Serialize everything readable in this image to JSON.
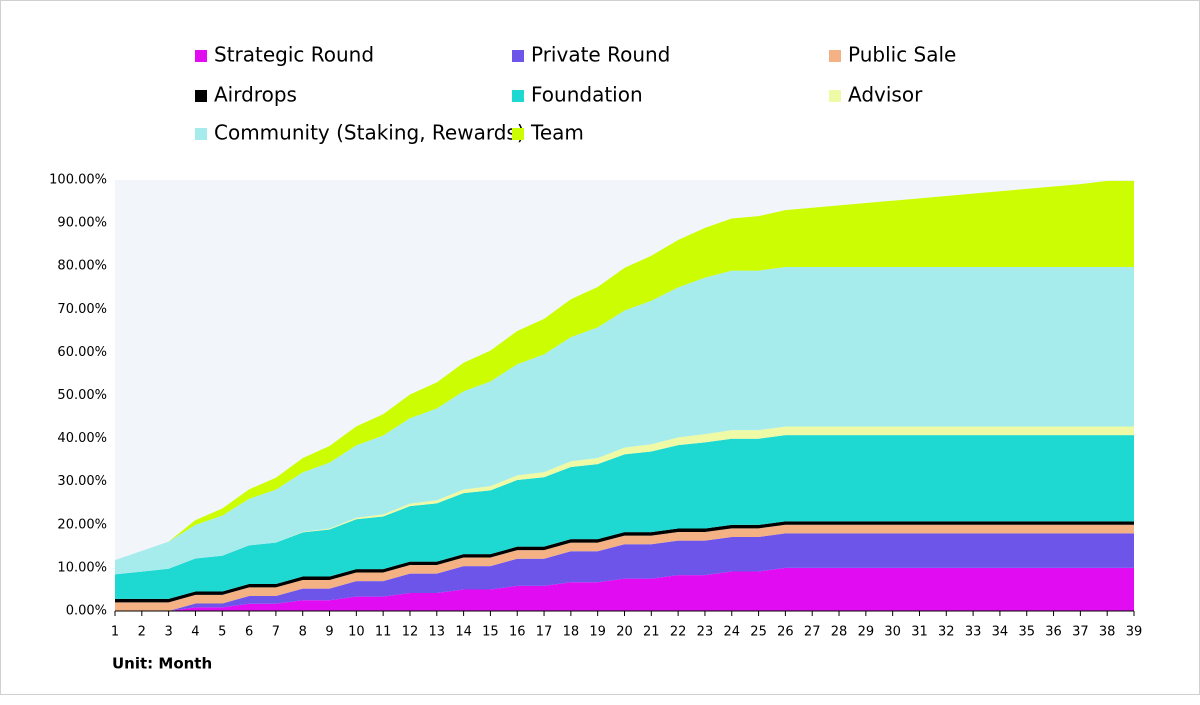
{
  "chart_data": {
    "type": "stacked-area",
    "x_label": "Unit: Month",
    "x": [
      1,
      2,
      3,
      4,
      5,
      6,
      7,
      8,
      9,
      10,
      11,
      12,
      13,
      14,
      15,
      16,
      17,
      18,
      19,
      20,
      21,
      22,
      23,
      24,
      25,
      26,
      27,
      28,
      29,
      30,
      31,
      32,
      33,
      34,
      35,
      36,
      37,
      38,
      39
    ],
    "xlim": [
      1,
      39
    ],
    "xticks": [
      1,
      2,
      3,
      4,
      5,
      6,
      7,
      8,
      9,
      10,
      11,
      12,
      13,
      14,
      15,
      16,
      17,
      18,
      19,
      20,
      21,
      22,
      23,
      24,
      25,
      26,
      27,
      28,
      29,
      30,
      31,
      32,
      33,
      34,
      35,
      36,
      37,
      38,
      39
    ],
    "ylim": [
      0,
      100
    ],
    "yticks": [
      {
        "value": 0,
        "label": "0.00%"
      },
      {
        "value": 10,
        "label": "10.00%"
      },
      {
        "value": 20,
        "label": "20.00%"
      },
      {
        "value": 30,
        "label": "30.00%"
      },
      {
        "value": 40,
        "label": "40.00%"
      },
      {
        "value": 50,
        "label": "50.00%"
      },
      {
        "value": 60,
        "label": "60.00%"
      },
      {
        "value": 70,
        "label": "70.00%"
      },
      {
        "value": 80,
        "label": "80.00%"
      },
      {
        "value": 90,
        "label": "90.00%"
      },
      {
        "value": 100,
        "label": "100.00%"
      }
    ],
    "grid": false,
    "legend_position": "top",
    "series": [
      {
        "name": "Strategic Round",
        "color": "#e20cf2",
        "values": [
          0,
          0,
          0,
          0.83,
          0.83,
          1.67,
          1.67,
          2.5,
          2.5,
          3.33,
          3.33,
          4.17,
          4.17,
          5,
          5,
          5.83,
          5.83,
          6.67,
          6.67,
          7.5,
          7.5,
          8.33,
          8.33,
          9.17,
          9.17,
          10,
          10,
          10,
          10,
          10,
          10,
          10,
          10,
          10,
          10,
          10,
          10,
          10,
          10
        ]
      },
      {
        "name": "Private Round",
        "color": "#6d55ea",
        "values": [
          0,
          0,
          0,
          0.9,
          0.9,
          1.8,
          1.8,
          2.7,
          2.7,
          3.6,
          3.6,
          4.5,
          4.5,
          5.4,
          5.4,
          6.3,
          6.3,
          7.2,
          7.2,
          8,
          8,
          8,
          8,
          8,
          8,
          8,
          8,
          8,
          8,
          8,
          8,
          8,
          8,
          8,
          8,
          8,
          8,
          8,
          8
        ]
      },
      {
        "name": "Public Sale",
        "color": "#f4b183",
        "values": [
          2,
          2,
          2,
          2,
          2,
          2,
          2,
          2,
          2,
          2,
          2,
          2,
          2,
          2,
          2,
          2,
          2,
          2,
          2,
          2,
          2,
          2,
          2,
          2,
          2,
          2,
          2,
          2,
          2,
          2,
          2,
          2,
          2,
          2,
          2,
          2,
          2,
          2,
          2
        ]
      },
      {
        "name": "Airdrops",
        "color": "#000000",
        "values": [
          0.8,
          0.8,
          0.8,
          0.8,
          0.8,
          0.8,
          0.8,
          0.8,
          0.8,
          0.8,
          0.8,
          0.8,
          0.8,
          0.8,
          0.8,
          0.8,
          0.8,
          0.8,
          0.8,
          0.8,
          0.8,
          0.8,
          0.8,
          0.8,
          0.8,
          0.8,
          0.8,
          0.8,
          0.8,
          0.8,
          0.8,
          0.8,
          0.8,
          0.8,
          0.8,
          0.8,
          0.8,
          0.8,
          0.8
        ]
      },
      {
        "name": "Foundation",
        "color": "#1ed8d2",
        "values": [
          5.7,
          6.35,
          7,
          7.65,
          8.3,
          8.95,
          9.6,
          10.25,
          10.9,
          11.55,
          12.2,
          12.85,
          13.5,
          14.15,
          14.8,
          15.45,
          16.1,
          16.75,
          17.4,
          18.05,
          18.7,
          19.35,
          20,
          20,
          20,
          20,
          20,
          20,
          20,
          20,
          20,
          20,
          20,
          20,
          20,
          20,
          20,
          20,
          20
        ]
      },
      {
        "name": "Advisor",
        "color": "#eefaa6",
        "values": [
          0,
          0,
          0,
          0,
          0,
          0,
          0,
          0.12,
          0.24,
          0.36,
          0.48,
          0.6,
          0.72,
          0.84,
          0.96,
          1.08,
          1.2,
          1.32,
          1.44,
          1.56,
          1.68,
          1.8,
          1.92,
          2,
          2,
          2,
          2,
          2,
          2,
          2,
          2,
          2,
          2,
          2,
          2,
          2,
          2,
          2,
          2
        ]
      },
      {
        "name": "Community (Staking, Rewards)",
        "color": "#a6ecec",
        "values": [
          3.3,
          4.8,
          6.3,
          7.8,
          9.3,
          10.8,
          12.3,
          13.8,
          15.3,
          16.8,
          18.3,
          19.8,
          21.3,
          22.8,
          24.3,
          25.8,
          27.3,
          28.8,
          30.3,
          31.8,
          33.3,
          34.8,
          36.3,
          37,
          37,
          37,
          37,
          37,
          37,
          37,
          37,
          37,
          37,
          37,
          37,
          37,
          37,
          37,
          37
        ]
      },
      {
        "name": "Team",
        "color": "#ccfd03",
        "values": [
          0,
          0,
          0,
          1.1,
          1.65,
          2.2,
          2.75,
          3.3,
          3.85,
          4.4,
          4.95,
          5.5,
          6.05,
          6.6,
          7.15,
          7.7,
          8.25,
          8.8,
          9.35,
          9.9,
          10.45,
          11,
          11.55,
          12.1,
          12.65,
          13.2,
          13.75,
          14.3,
          14.85,
          15.4,
          15.95,
          16.5,
          17.05,
          17.6,
          18.15,
          18.7,
          19.25,
          20,
          20
        ]
      }
    ]
  }
}
